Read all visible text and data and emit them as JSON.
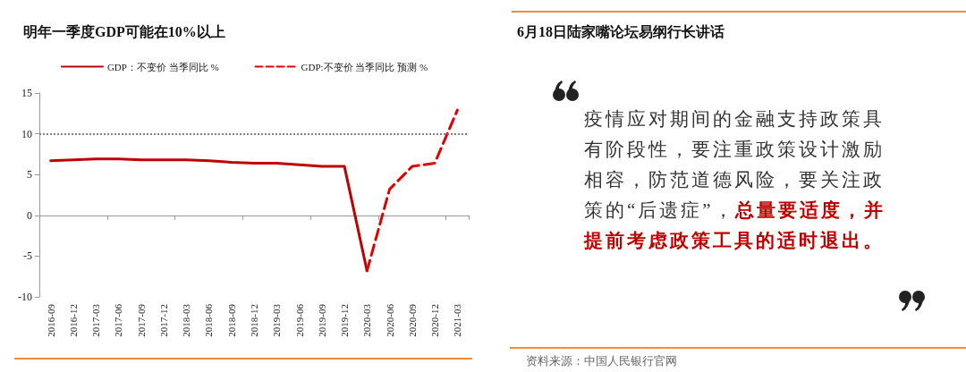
{
  "chart_data": [
    {
      "type": "line",
      "title": "明年一季度GDP可能在10%以上",
      "categories": [
        "2016-09",
        "2016-12",
        "2017-03",
        "2017-06",
        "2017-09",
        "2017-12",
        "2018-03",
        "2018-06",
        "2018-09",
        "2018-12",
        "2019-03",
        "2019-06",
        "2019-09",
        "2019-12",
        "2020-03",
        "2020-06",
        "2020-09",
        "2020-12",
        "2021-03"
      ],
      "series": [
        {
          "name": "GDP：不变价 当季同比 %",
          "color": "#c00000",
          "line_style": "solid",
          "values": [
            6.7,
            6.8,
            6.9,
            6.9,
            6.8,
            6.8,
            6.8,
            6.7,
            6.5,
            6.4,
            6.4,
            6.2,
            6.0,
            6.0,
            -6.8,
            null,
            null,
            null,
            null
          ]
        },
        {
          "name": "GDP:不变价 当季同比 预测 %",
          "color": "#e00000",
          "line_style": "dashed",
          "values": [
            null,
            null,
            null,
            null,
            null,
            null,
            null,
            null,
            null,
            null,
            null,
            null,
            null,
            null,
            -6.8,
            3.2,
            6.0,
            6.4,
            12.9
          ]
        }
      ],
      "ylim": [
        -10,
        15
      ],
      "yticks": [
        -10,
        -5,
        0,
        5,
        10,
        15
      ],
      "ref_lines": [
        {
          "axis": "y",
          "value": 10,
          "color": "#808080",
          "line_style": "dotted"
        }
      ],
      "grid": false,
      "legend": "top",
      "marker": "none"
    },
    {
      "type": "other",
      "title": "6月18日陆家嘴论坛易纲行长讲话",
      "annotations": [
        "疫情应对期间的金融支持政策具有阶段性，要注重政策设计激励相容，防范道德风险，要关注政策的“后遗症”，",
        "总量要适度，并提前考虑政策工具的适时退出。",
        "资料来源：中国人民银行官网"
      ]
    }
  ]
}
